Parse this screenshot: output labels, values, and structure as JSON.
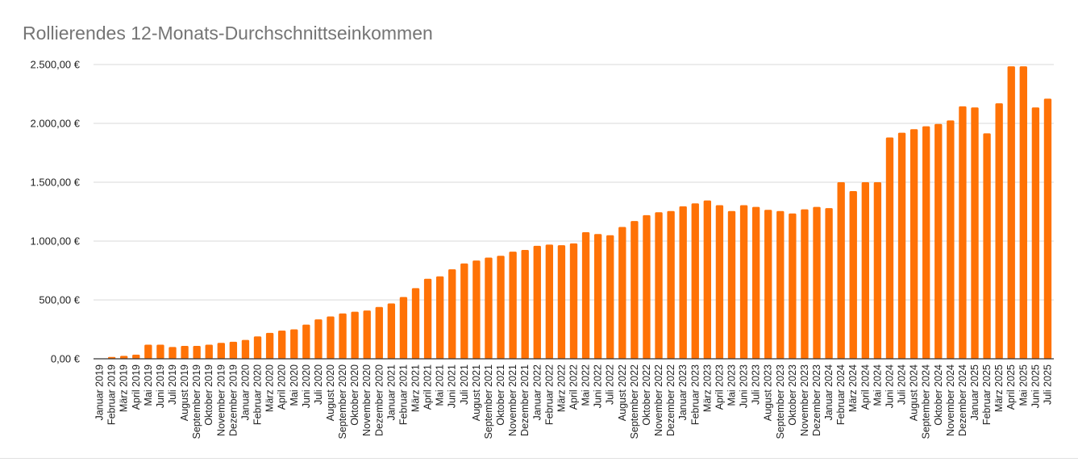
{
  "chart_data": {
    "type": "bar",
    "title": "Rollierendes 12-Monats-Durchschnittseinkommen",
    "bar_color": "#ff7206",
    "grid": true,
    "ylim": [
      0,
      2500
    ],
    "y_ticks": [
      {
        "value": 0,
        "label": "0,00 €"
      },
      {
        "value": 500,
        "label": "500,00 €"
      },
      {
        "value": 1000,
        "label": "1.000,00 €"
      },
      {
        "value": 1500,
        "label": "1.500,00 €"
      },
      {
        "value": 2000,
        "label": "2.000,00 €"
      },
      {
        "value": 2500,
        "label": "2.500,00 €"
      }
    ],
    "categories": [
      "Januar 2019",
      "Februar 2019",
      "März 2019",
      "April 2019",
      "Mai 2019",
      "Juni 2019",
      "Juli 2019",
      "August 2019",
      "September 2019",
      "Oktober 2019",
      "November 2019",
      "Dezember 2019",
      "Januar 2020",
      "Februar 2020",
      "März 2020",
      "April 2020",
      "Mai 2020",
      "Juni 2020",
      "Juli 2020",
      "August 2020",
      "September 2020",
      "Oktober 2020",
      "November 2020",
      "Dezember 2020",
      "Januar 2021",
      "Februar 2021",
      "März 2021",
      "April 2021",
      "Mai 2021",
      "Juni 2021",
      "Juli 2021",
      "August 2021",
      "September 2021",
      "Oktober 2021",
      "November 2021",
      "Dezember 2021",
      "Januar 2022",
      "Februar 2022",
      "März 2022",
      "April 2022",
      "Mai 2022",
      "Juni 2022",
      "Juli 2022",
      "August 2022",
      "September 2022",
      "Oktober 2022",
      "November 2022",
      "Dezember 2022",
      "Januar 2023",
      "Februar 2023",
      "März 2023",
      "April 2023",
      "Mai 2023",
      "Juni 2023",
      "Juli 2023",
      "August 2023",
      "September 2023",
      "Oktober 2023",
      "November 2023",
      "Dezember 2023",
      "Januar 2024",
      "Februar 2024",
      "März 2024",
      "April 2024",
      "Mai 2024",
      "Juni 2024",
      "Juli 2024",
      "August 2024",
      "September 2024",
      "Oktober 2024",
      "November 2024",
      "Dezember 2024",
      "Januar 2025",
      "Februar 2025",
      "März 2025",
      "April 2025",
      "Mai 2025",
      "Juni 2025",
      "Juli 2025"
    ],
    "values": [
      0,
      15,
      25,
      35,
      120,
      120,
      100,
      110,
      110,
      120,
      135,
      145,
      160,
      190,
      220,
      240,
      250,
      290,
      335,
      360,
      385,
      400,
      410,
      440,
      470,
      525,
      600,
      680,
      700,
      760,
      810,
      835,
      860,
      875,
      910,
      925,
      960,
      970,
      965,
      980,
      1075,
      1060,
      1050,
      1120,
      1170,
      1220,
      1245,
      1255,
      1295,
      1320,
      1345,
      1305,
      1255,
      1305,
      1290,
      1265,
      1255,
      1235,
      1270,
      1290,
      1280,
      1500,
      1425,
      1500,
      1500,
      1880,
      1920,
      1950,
      1975,
      1995,
      2025,
      2145,
      2135,
      1915,
      2170,
      2485,
      2485,
      2135,
      2210
    ]
  }
}
